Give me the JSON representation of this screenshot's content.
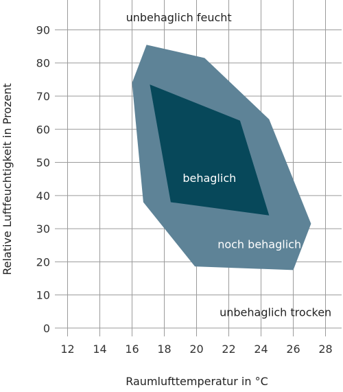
{
  "chart_data": {
    "type": "area",
    "title": "",
    "xlabel": "Raumlufttemperatur in °C",
    "ylabel": "Relative Luftfeuchtigkeit in Prozent",
    "xlim": [
      11,
      29
    ],
    "ylim": [
      -2.5,
      99
    ],
    "x_ticks": [
      12,
      14,
      16,
      18,
      20,
      22,
      24,
      26,
      28
    ],
    "y_ticks": [
      0,
      10,
      20,
      30,
      40,
      50,
      60,
      70,
      80,
      90
    ],
    "grid": true,
    "colors": {
      "noch_behaglich": "#5e8397",
      "behaglich": "#07485a",
      "grid": "#9a9a9a",
      "text_dark": "#222222",
      "text_light": "#ffffff"
    },
    "regions": [
      {
        "name": "noch behaglich",
        "color": "#5e8397",
        "points": [
          [
            16.9,
            85.5
          ],
          [
            20.5,
            81.5
          ],
          [
            24.5,
            63
          ],
          [
            27.1,
            31.5
          ],
          [
            26,
            17.5
          ],
          [
            19.9,
            18.6
          ],
          [
            16.7,
            38
          ],
          [
            16.0,
            74
          ]
        ]
      },
      {
        "name": "behaglich",
        "color": "#07485a",
        "points": [
          [
            17.1,
            73.5
          ],
          [
            22.7,
            62.6
          ],
          [
            24.5,
            34
          ],
          [
            18.4,
            38
          ]
        ]
      }
    ],
    "annotations": [
      {
        "text": "unbehaglich feucht",
        "x": 18.9,
        "y": 93.5,
        "color": "#222222"
      },
      {
        "text": "behaglich",
        "x": 20.8,
        "y": 45,
        "color": "#ffffff"
      },
      {
        "text": "noch behaglich",
        "x": 23.9,
        "y": 25,
        "color": "#ffffff"
      },
      {
        "text": "unbehaglich trocken",
        "x": 24.9,
        "y": 4.5,
        "color": "#222222"
      }
    ]
  }
}
